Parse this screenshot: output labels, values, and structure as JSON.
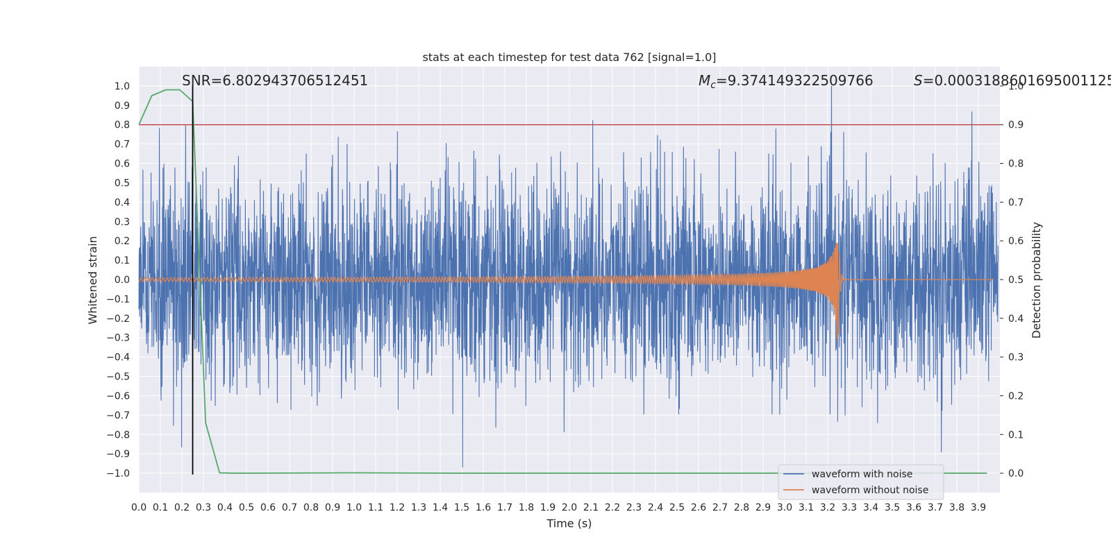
{
  "chart_data": {
    "type": "line",
    "title": "stats at each timestep for test data 762 [signal=1.0]",
    "xlabel": "Time (s)",
    "ylabel_left": "Whitened strain",
    "ylabel_right": "Detection probability",
    "xlim": [
      0.0,
      4.0
    ],
    "ylim_left": [
      -1.1,
      1.1
    ],
    "ylim_right": [
      -0.05,
      1.05
    ],
    "x_ticks": [
      "0.0",
      "0.1",
      "0.2",
      "0.3",
      "0.4",
      "0.5",
      "0.6",
      "0.7",
      "0.8",
      "0.9",
      "1.0",
      "1.1",
      "1.2",
      "1.3",
      "1.4",
      "1.5",
      "1.6",
      "1.7",
      "1.8",
      "1.9",
      "2.0",
      "2.1",
      "2.2",
      "2.3",
      "2.4",
      "2.5",
      "2.6",
      "2.7",
      "2.8",
      "2.9",
      "3.0",
      "3.1",
      "3.2",
      "3.3",
      "3.4",
      "3.5",
      "3.6",
      "3.7",
      "3.8",
      "3.9"
    ],
    "y_ticks_left": [
      "1.0",
      "0.9",
      "0.8",
      "0.7",
      "0.6",
      "0.5",
      "0.4",
      "0.3",
      "0.2",
      "0.1",
      "0.0",
      "−0.1",
      "−0.2",
      "−0.3",
      "−0.4",
      "−0.5",
      "−0.6",
      "−0.7",
      "−0.8",
      "−0.9",
      "−1.0"
    ],
    "y_ticks_right": [
      "1.0",
      "0.9",
      "0.8",
      "0.7",
      "0.6",
      "0.5",
      "0.4",
      "0.3",
      "0.2",
      "0.1",
      "0.0"
    ],
    "annotations": {
      "snr": "SNR=6.802943706512451",
      "mc_symbol": "M",
      "mc_sub": "c",
      "mc_value": "=9.374149322509766",
      "s_symbol": "S",
      "s_value": "=0.0003188601695001125"
    },
    "threshold_right": 0.9,
    "marker_x": 0.25,
    "legend": {
      "placement": "lower-right",
      "entries": [
        "waveform with noise",
        "waveform without noise"
      ]
    },
    "colors": {
      "noise": "#4c72b0",
      "signal": "#dd8452",
      "probability": "#55a868",
      "threshold": "#c44e52",
      "marker": "#000000",
      "background": "#eaeaf2",
      "grid": "#ffffff"
    },
    "series": [
      {
        "name": "waveform with noise",
        "axis": "left",
        "kind": "noise",
        "amplitude_typical": 0.35,
        "spike_max": 1.0,
        "spike_min": -0.97
      },
      {
        "name": "waveform without noise",
        "axis": "left",
        "kind": "chirp",
        "merger_time": 3.25,
        "peak_positive": 0.19,
        "peak_negative": -0.32,
        "early_amplitude": 0.01
      },
      {
        "name": "detection probability",
        "axis": "right",
        "x": [
          0.0,
          0.06,
          0.125,
          0.19,
          0.25,
          0.31,
          0.375,
          0.44,
          0.5,
          1.0,
          1.5,
          2.0,
          2.5,
          3.0,
          3.5,
          3.94
        ],
        "y": [
          0.9,
          0.975,
          0.99,
          0.99,
          0.96,
          0.13,
          0.001,
          0.0,
          0.0,
          0.001,
          0.0,
          0.0,
          0.0,
          0.0,
          0.0,
          0.0
        ]
      }
    ]
  }
}
